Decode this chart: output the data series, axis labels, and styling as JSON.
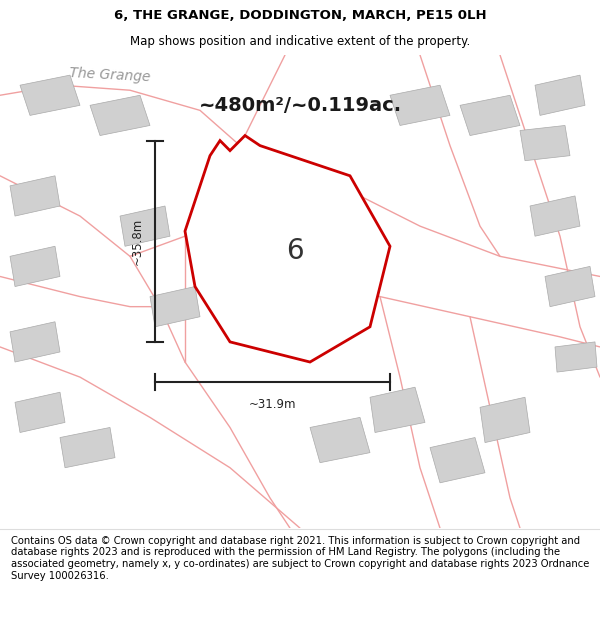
{
  "title": "6, THE GRANGE, DODDINGTON, MARCH, PE15 0LH",
  "subtitle": "Map shows position and indicative extent of the property.",
  "footer": "Contains OS data © Crown copyright and database right 2021. This information is subject to Crown copyright and database rights 2023 and is reproduced with the permission of HM Land Registry. The polygons (including the associated geometry, namely x, y co-ordinates) are subject to Crown copyright and database rights 2023 Ordnance Survey 100026316.",
  "area_text": "~480m²/~0.119ac.",
  "plot_label": "6",
  "dim_width": "~31.9m",
  "dim_height": "~35.8m",
  "street_label": "The Grange",
  "title_fontsize": 9.5,
  "subtitle_fontsize": 8.5,
  "footer_fontsize": 7.2,
  "red_color": "#cc0000",
  "pink_color": "#f0a0a0",
  "gray_building": "#d0d0d0",
  "white_map_bg": "#ffffff"
}
